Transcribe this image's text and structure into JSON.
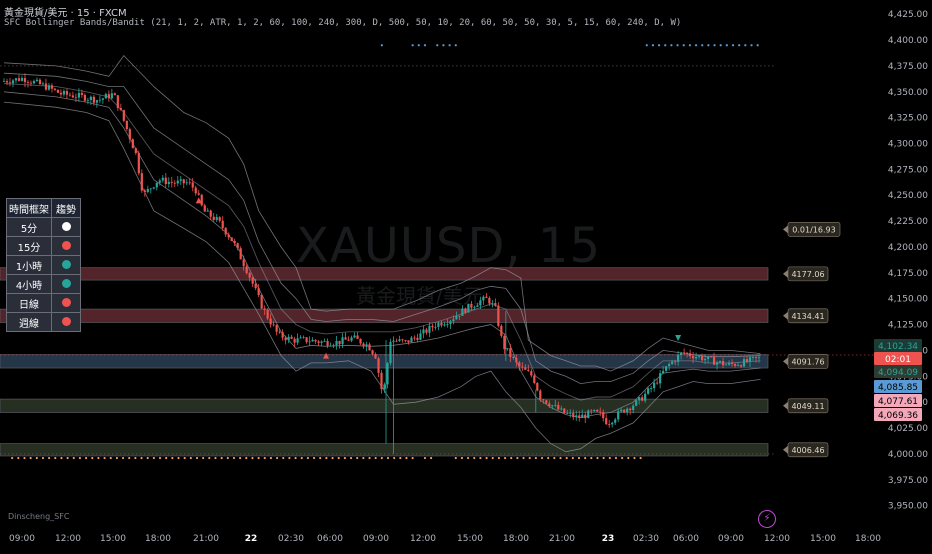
{
  "header": {
    "symbol_line": "黃金現貨/美元 · 15 · FXCM",
    "indicator_line": "SFC Bollinger Bands/Bandit (21, 1, 2, ATR, 1, 2, 60, 100, 240, 300, D, 500, 50, 10, 20, 60, 50, 50, 30, 5, 15, 60, 240, D, W)"
  },
  "watermark": {
    "ticker": "XAUUSD, 15",
    "name": "黃金現貨/美元"
  },
  "author": "Dinscheng_SFC",
  "trend_table": {
    "headers": [
      "時間框架",
      "趨勢"
    ],
    "rows": [
      {
        "tf": "5分",
        "color": "#ffffff"
      },
      {
        "tf": "15分",
        "color": "#ef5350"
      },
      {
        "tf": "1小時",
        "color": "#26a69a"
      },
      {
        "tf": "4小時",
        "color": "#26a69a"
      },
      {
        "tf": "日線",
        "color": "#ef5350"
      },
      {
        "tf": "週線",
        "color": "#ef5350"
      }
    ]
  },
  "colors": {
    "up": "#26a69a",
    "down": "#ef5350",
    "band": "#9598a1",
    "zone_red": "#5d2a30",
    "zone_blue": "#2a3c52",
    "zone_green": "#2c3527",
    "dot_blue": "#5b9bd5",
    "dot_orange": "#f7a35c",
    "bg": "#000000"
  },
  "chart_data": {
    "type": "candlestick",
    "title": "XAUUSD, 15",
    "ylim": [
      3940,
      4430
    ],
    "x_ticks": [
      "09:00",
      "12:00",
      "15:00",
      "18:00",
      "21:00",
      "22",
      "02:30",
      "06:00",
      "09:00",
      "12:00",
      "15:00",
      "18:00",
      "21:00",
      "23",
      "02:30",
      "06:00",
      "09:00",
      "12:00",
      "15:00",
      "18:00"
    ],
    "x_tick_bold": [
      "22",
      "23"
    ],
    "y_ticks": [
      "4,425.00",
      "4,400.00",
      "4,375.00",
      "4,350.00",
      "4,325.00",
      "4,300.00",
      "4,275.00",
      "4,250.00",
      "4,225.00",
      "4,200.00",
      "4,175.00",
      "4,150.00",
      "4,125.00",
      "4,100.00",
      "4,075.00",
      "4,050.00",
      "4,025.00",
      "4,000.00",
      "3,975.00",
      "3,950.00"
    ],
    "y_tick_values": [
      4425,
      4400,
      4375,
      4350,
      4325,
      4300,
      4275,
      4250,
      4225,
      4200,
      4175,
      4150,
      4125,
      4100,
      4075,
      4050,
      4025,
      4000,
      3975,
      3950
    ],
    "price_path": [
      [
        0,
        4360
      ],
      [
        3,
        4363
      ],
      [
        6,
        4355
      ],
      [
        8,
        4348
      ],
      [
        11,
        4345
      ],
      [
        13,
        4342
      ],
      [
        15,
        4348
      ],
      [
        16,
        4330
      ],
      [
        18,
        4290
      ],
      [
        19,
        4250
      ],
      [
        21,
        4265
      ],
      [
        23,
        4262
      ],
      [
        25,
        4262
      ],
      [
        26,
        4255
      ],
      [
        27,
        4235
      ],
      [
        29,
        4225
      ],
      [
        31,
        4205
      ],
      [
        33,
        4175
      ],
      [
        35,
        4140
      ],
      [
        37,
        4115
      ],
      [
        39,
        4110
      ],
      [
        41,
        4110
      ],
      [
        43,
        4108
      ],
      [
        45,
        4108
      ],
      [
        47,
        4112
      ],
      [
        49,
        4105
      ],
      [
        50,
        4095
      ],
      [
        51,
        4055
      ],
      [
        52,
        4110
      ],
      [
        54,
        4108
      ],
      [
        56,
        4115
      ],
      [
        58,
        4125
      ],
      [
        60,
        4130
      ],
      [
        62,
        4140
      ],
      [
        64,
        4148
      ],
      [
        65,
        4150
      ],
      [
        66,
        4140
      ],
      [
        67,
        4105
      ],
      [
        69,
        4085
      ],
      [
        71,
        4075
      ],
      [
        72,
        4055
      ],
      [
        74,
        4045
      ],
      [
        75,
        4040
      ],
      [
        77,
        4035
      ],
      [
        79,
        4040
      ],
      [
        80,
        4038
      ],
      [
        81,
        4030
      ],
      [
        83,
        4042
      ],
      [
        85,
        4050
      ],
      [
        87,
        4065
      ],
      [
        89,
        4085
      ],
      [
        91,
        4098
      ],
      [
        93,
        4094
      ],
      [
        95,
        4090
      ],
      [
        97,
        4086
      ],
      [
        99,
        4088
      ],
      [
        101,
        4092
      ]
    ],
    "bands": {
      "upper_outer": [
        [
          0,
          4378
        ],
        [
          7,
          4375
        ],
        [
          11,
          4370
        ],
        [
          14,
          4365
        ],
        [
          16,
          4385
        ],
        [
          20,
          4355
        ],
        [
          24,
          4330
        ],
        [
          27,
          4320
        ],
        [
          30,
          4305
        ],
        [
          32,
          4280
        ],
        [
          34,
          4235
        ],
        [
          37,
          4200
        ],
        [
          39,
          4180
        ],
        [
          41,
          4140
        ],
        [
          43,
          4138
        ],
        [
          46,
          4140
        ],
        [
          49,
          4140
        ],
        [
          52,
          4140
        ],
        [
          55,
          4148
        ],
        [
          58,
          4158
        ],
        [
          61,
          4165
        ],
        [
          63,
          4172
        ],
        [
          65,
          4180
        ],
        [
          67,
          4178
        ],
        [
          69,
          4170
        ],
        [
          70,
          4110
        ],
        [
          73,
          4095
        ],
        [
          75,
          4090
        ],
        [
          77,
          4085
        ],
        [
          79,
          4085
        ],
        [
          81,
          4080
        ],
        [
          84,
          4090
        ],
        [
          86,
          4102
        ],
        [
          88,
          4112
        ],
        [
          90,
          4108
        ],
        [
          92,
          4104
        ],
        [
          94,
          4100
        ],
        [
          97,
          4100
        ],
        [
          101,
          4097
        ]
      ],
      "upper_inner": [
        [
          0,
          4368
        ],
        [
          7,
          4365
        ],
        [
          11,
          4360
        ],
        [
          14,
          4355
        ],
        [
          16,
          4355
        ],
        [
          20,
          4315
        ],
        [
          24,
          4295
        ],
        [
          27,
          4280
        ],
        [
          30,
          4265
        ],
        [
          32,
          4245
        ],
        [
          34,
          4205
        ],
        [
          37,
          4165
        ],
        [
          39,
          4150
        ],
        [
          41,
          4130
        ],
        [
          43,
          4128
        ],
        [
          46,
          4130
        ],
        [
          49,
          4130
        ],
        [
          52,
          4128
        ],
        [
          55,
          4135
        ],
        [
          58,
          4142
        ],
        [
          61,
          4150
        ],
        [
          63,
          4158
        ],
        [
          65,
          4162
        ],
        [
          67,
          4160
        ],
        [
          69,
          4140
        ],
        [
          71,
          4090
        ],
        [
          73,
          4080
        ],
        [
          75,
          4075
        ],
        [
          77,
          4068
        ],
        [
          79,
          4070
        ],
        [
          81,
          4070
        ],
        [
          84,
          4078
        ],
        [
          86,
          4090
        ],
        [
          88,
          4100
        ],
        [
          90,
          4098
        ],
        [
          92,
          4096
        ],
        [
          94,
          4094
        ],
        [
          97,
          4094
        ],
        [
          101,
          4095
        ]
      ],
      "middle": [
        [
          0,
          4358
        ],
        [
          7,
          4355
        ],
        [
          11,
          4350
        ],
        [
          14,
          4345
        ],
        [
          16,
          4330
        ],
        [
          20,
          4290
        ],
        [
          24,
          4270
        ],
        [
          27,
          4255
        ],
        [
          30,
          4240
        ],
        [
          32,
          4220
        ],
        [
          34,
          4185
        ],
        [
          37,
          4140
        ],
        [
          39,
          4125
        ],
        [
          41,
          4118
        ],
        [
          43,
          4116
        ],
        [
          46,
          4118
        ],
        [
          49,
          4118
        ],
        [
          52,
          4118
        ],
        [
          55,
          4122
        ],
        [
          58,
          4128
        ],
        [
          61,
          4135
        ],
        [
          63,
          4140
        ],
        [
          65,
          4145
        ],
        [
          67,
          4140
        ],
        [
          69,
          4110
        ],
        [
          71,
          4075
        ],
        [
          73,
          4065
        ],
        [
          75,
          4058
        ],
        [
          77,
          4052
        ],
        [
          79,
          4055
        ],
        [
          81,
          4055
        ],
        [
          84,
          4065
        ],
        [
          86,
          4078
        ],
        [
          88,
          4090
        ],
        [
          90,
          4090
        ],
        [
          92,
          4090
        ],
        [
          94,
          4088
        ],
        [
          97,
          4088
        ],
        [
          101,
          4090
        ]
      ],
      "lower_inner": [
        [
          0,
          4350
        ],
        [
          7,
          4345
        ],
        [
          11,
          4340
        ],
        [
          14,
          4335
        ],
        [
          16,
          4315
        ],
        [
          20,
          4265
        ],
        [
          24,
          4245
        ],
        [
          27,
          4230
        ],
        [
          30,
          4212
        ],
        [
          32,
          4190
        ],
        [
          34,
          4160
        ],
        [
          37,
          4118
        ],
        [
          39,
          4102
        ],
        [
          41,
          4105
        ],
        [
          43,
          4104
        ],
        [
          46,
          4105
        ],
        [
          49,
          4104
        ],
        [
          52,
          4105
        ],
        [
          55,
          4108
        ],
        [
          58,
          4112
        ],
        [
          61,
          4118
        ],
        [
          63,
          4122
        ],
        [
          65,
          4125
        ],
        [
          67,
          4115
        ],
        [
          69,
          4080
        ],
        [
          71,
          4055
        ],
        [
          73,
          4045
        ],
        [
          75,
          4038
        ],
        [
          77,
          4035
        ],
        [
          79,
          4038
        ],
        [
          81,
          4040
        ],
        [
          84,
          4050
        ],
        [
          86,
          4065
        ],
        [
          88,
          4078
        ],
        [
          90,
          4080
        ],
        [
          92,
          4082
        ],
        [
          94,
          4080
        ],
        [
          97,
          4080
        ],
        [
          101,
          4083
        ]
      ],
      "lower_outer": [
        [
          0,
          4340
        ],
        [
          7,
          4335
        ],
        [
          11,
          4330
        ],
        [
          14,
          4322
        ],
        [
          16,
          4295
        ],
        [
          20,
          4235
        ],
        [
          24,
          4218
        ],
        [
          27,
          4205
        ],
        [
          30,
          4185
        ],
        [
          32,
          4160
        ],
        [
          34,
          4135
        ],
        [
          37,
          4095
        ],
        [
          39,
          4080
        ],
        [
          41,
          4088
        ],
        [
          43,
          4088
        ],
        [
          46,
          4090
        ],
        [
          49,
          4080
        ],
        [
          52,
          4048
        ],
        [
          55,
          4050
        ],
        [
          58,
          4055
        ],
        [
          61,
          4065
        ],
        [
          63,
          4075
        ],
        [
          65,
          4080
        ],
        [
          67,
          4060
        ],
        [
          69,
          4045
        ],
        [
          71,
          4025
        ],
        [
          73,
          4010
        ],
        [
          75,
          4002
        ],
        [
          77,
          4005
        ],
        [
          79,
          4015
        ],
        [
          81,
          4020
        ],
        [
          84,
          4030
        ],
        [
          86,
          4045
        ],
        [
          88,
          4060
        ],
        [
          90,
          4065
        ],
        [
          92,
          4070
        ],
        [
          94,
          4068
        ],
        [
          97,
          4068
        ],
        [
          101,
          4072
        ]
      ]
    },
    "zones": [
      {
        "y1": 4180,
        "y2": 4168,
        "color": "zone_red",
        "label": "4177.06"
      },
      {
        "y1": 4140,
        "y2": 4127,
        "color": "zone_red",
        "label": "4134.41"
      },
      {
        "y1": 4096,
        "y2": 4083,
        "color": "zone_blue",
        "label": "4091.76"
      },
      {
        "y1": 4053,
        "y2": 4040,
        "color": "zone_green",
        "label": "4049.11"
      },
      {
        "y1": 4010,
        "y2": 3998,
        "color": "zone_green",
        "label": "4006.46"
      }
    ],
    "label_tag": {
      "value": 4217,
      "label": "0.01/16.93"
    },
    "price_tags": [
      {
        "value": 4102.34,
        "label": "4,102.34",
        "bg": "#1b3b36",
        "fg": "#26a69a"
      },
      {
        "value": 4095.6,
        "label": "02:01",
        "bg": "#ef5350",
        "fg": "#ffffff"
      },
      {
        "value": 4094.09,
        "label": "4,094.09",
        "bg": "#2e3b30",
        "fg": "#26a69a"
      },
      {
        "value": 4085.85,
        "label": "4,085.85",
        "bg": "#5b9bd5",
        "fg": "#000000"
      },
      {
        "value": 4077.61,
        "label": "4,077.61",
        "bg": "#f4a7b9",
        "fg": "#000000"
      },
      {
        "value": 4069.36,
        "label": "4,069.36",
        "bg": "#f4a7b9",
        "fg": "#000000"
      }
    ],
    "top_dot_ranges": [
      [
        61,
        61
      ],
      [
        66,
        68
      ],
      [
        70,
        73
      ],
      [
        104,
        122
      ]
    ],
    "bottom_dot_ranges": [
      [
        1,
        60
      ],
      [
        61,
        63
      ],
      [
        64,
        66
      ],
      [
        68,
        69
      ],
      [
        73,
        103
      ]
    ],
    "markers": [
      {
        "x": 26,
        "price": 4245,
        "shape": "up",
        "color": "#ef5350"
      },
      {
        "x": 43,
        "price": 4095,
        "shape": "up",
        "color": "#ef5350"
      },
      {
        "x": 90,
        "price": 4112,
        "shape": "down",
        "color": "#26a69a"
      }
    ],
    "x_range_units": [
      0,
      102
    ]
  }
}
